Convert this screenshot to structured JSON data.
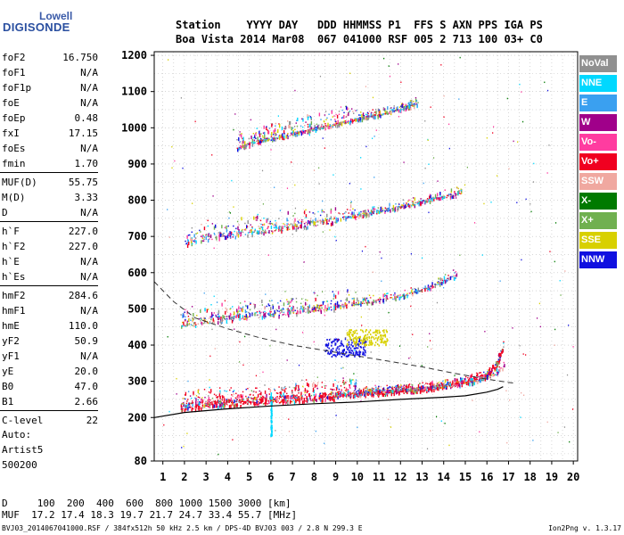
{
  "logo": {
    "top": "Lowell",
    "bottom": "DIGISONDE"
  },
  "header": {
    "line1": "Station    YYYY DAY   DDD HHMMSS P1  FFS S AXN PPS IGA PS",
    "line2": "Boa Vista 2014 Mar08  067 041000 RSF 005 2 713 100 03+ C0"
  },
  "parameters": [
    {
      "name": "foF2",
      "value": "16.750"
    },
    {
      "name": "foF1",
      "value": "N/A"
    },
    {
      "name": "foF1p",
      "value": "N/A"
    },
    {
      "name": "foE",
      "value": "N/A"
    },
    {
      "name": "foEp",
      "value": "0.48"
    },
    {
      "name": "fxI",
      "value": "17.15"
    },
    {
      "name": "foEs",
      "value": "N/A"
    },
    {
      "name": "fmin",
      "value": "1.70"
    },
    {
      "name": "MUF(D)",
      "value": "55.75"
    },
    {
      "name": "M(D)",
      "value": "3.33"
    },
    {
      "name": "D",
      "value": "N/A"
    },
    {
      "name": "h`F",
      "value": "227.0"
    },
    {
      "name": "h`F2",
      "value": "227.0"
    },
    {
      "name": "h`E",
      "value": "N/A"
    },
    {
      "name": "h`Es",
      "value": "N/A"
    },
    {
      "name": "hmF2",
      "value": "284.6"
    },
    {
      "name": "hmF1",
      "value": "N/A"
    },
    {
      "name": "hmE",
      "value": "110.0"
    },
    {
      "name": "yF2",
      "value": "50.9"
    },
    {
      "name": "yF1",
      "value": "N/A"
    },
    {
      "name": "yE",
      "value": "20.0"
    },
    {
      "name": "B0",
      "value": "47.0"
    },
    {
      "name": "B1",
      "value": "2.66"
    },
    {
      "name": "C-level",
      "value": "22"
    }
  ],
  "auto": {
    "line1": "Auto:",
    "line2": "Artist5",
    "line3": "500200"
  },
  "muf_table": {
    "d_row": "D     100  200  400  600  800 1000 1500 3000 [km]",
    "muf_row": "MUF  17.2 17.4 18.3 19.7 21.7 24.7 33.4 55.7 [MHz]"
  },
  "footer": {
    "left": "BVJ03_2014067041000.RSF / 384fx512h 50 kHz 2.5 km / DPS-4D BVJ03 003 / 2.8 N 299.3 E",
    "right": "Ion2Png v. 1.3.17"
  },
  "legend": [
    {
      "label": "NoVal",
      "color": "#909090"
    },
    {
      "label": "NNE",
      "color": "#00d8ff"
    },
    {
      "label": "E",
      "color": "#3aa0f0"
    },
    {
      "label": "W",
      "color": "#a0008a"
    },
    {
      "label": "Vo-",
      "color": "#ff3ca0"
    },
    {
      "label": "Vo+",
      "color": "#f00020"
    },
    {
      "label": "SSW",
      "color": "#f0a8a0"
    },
    {
      "label": "X-",
      "color": "#007a00"
    },
    {
      "label": "X+",
      "color": "#70b050"
    },
    {
      "label": "SSE",
      "color": "#d8d000"
    },
    {
      "label": "NNW",
      "color": "#1010e0"
    }
  ],
  "chart_data": {
    "type": "scatter",
    "xlim": [
      0.6,
      20.2
    ],
    "ylim": [
      80,
      1210
    ],
    "x_ticks": [
      1,
      2,
      3,
      4,
      5,
      6,
      7,
      8,
      9,
      10,
      11,
      12,
      13,
      14,
      15,
      16,
      17,
      18,
      19,
      20
    ],
    "y_ticks": [
      80,
      200,
      300,
      400,
      500,
      600,
      700,
      800,
      900,
      1000,
      1100,
      1200
    ],
    "grid": true,
    "traces": [
      {
        "name": "O-trace F2 (1st hop)",
        "x": [
          1.8,
          3,
          5,
          7,
          9,
          11,
          13,
          14,
          15,
          16,
          16.4,
          16.75
        ],
        "y": [
          230,
          238,
          246,
          254,
          262,
          270,
          280,
          288,
          300,
          318,
          340,
          395
        ]
      },
      {
        "name": "2nd hop",
        "x": [
          1.8,
          3,
          5,
          7,
          9,
          11,
          12,
          13,
          14,
          14.6
        ],
        "y": [
          460,
          470,
          483,
          495,
          508,
          525,
          537,
          553,
          578,
          595
        ]
      },
      {
        "name": "3rd hop",
        "x": [
          2,
          3,
          5,
          7,
          9,
          10.5,
          12,
          13.2,
          14.8
        ],
        "y": [
          685,
          700,
          715,
          730,
          748,
          765,
          783,
          800,
          823
        ]
      },
      {
        "name": "4th hop",
        "x": [
          4.4,
          5.5,
          7,
          8.5,
          10,
          11.5,
          12.8
        ],
        "y": [
          945,
          965,
          985,
          1005,
          1025,
          1045,
          1068
        ]
      },
      {
        "name": "X-trace",
        "x": [
          9,
          10,
          11,
          12,
          13,
          14,
          15,
          15.8,
          16.4,
          16.8
        ],
        "y": [
          270,
          272,
          275,
          278,
          282,
          288,
          296,
          306,
          322,
          345
        ]
      }
    ],
    "profile": {
      "x": [
        0.6,
        2,
        4,
        6,
        8,
        10,
        12,
        14,
        15,
        16,
        16.5,
        16.75
      ],
      "y": [
        200,
        214,
        224,
        232,
        238,
        243,
        250,
        256,
        260,
        270,
        278,
        285
      ]
    },
    "muf_curve": {
      "x": [
        0.6,
        1.5,
        2.5,
        4,
        5.5,
        7,
        8.5,
        10,
        11.5,
        13,
        14.5,
        16,
        17,
        17.3
      ],
      "y": [
        575,
        520,
        475,
        445,
        420,
        400,
        385,
        370,
        355,
        340,
        322,
        306,
        297,
        295
      ]
    },
    "scatter_clusters": [
      {
        "x": [
          8.5,
          9,
          9.5,
          10
        ],
        "y": [
          370,
          380,
          385,
          400
        ],
        "color": "#1010e0"
      },
      {
        "x": [
          9.5,
          10,
          10.5,
          11
        ],
        "y": [
          400,
          410,
          420,
          425
        ],
        "color": "#d8d000"
      },
      {
        "x": [
          6,
          6
        ],
        "y": [
          150,
          250
        ],
        "color": "#00d8ff"
      }
    ]
  }
}
